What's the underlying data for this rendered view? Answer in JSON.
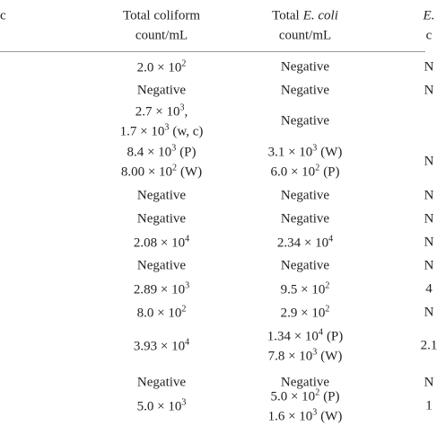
{
  "table": {
    "left_header": "c",
    "columns": [
      {
        "line1": "Total coliform",
        "line2": "count/mL"
      },
      {
        "line1": "Total",
        "line1_italic": "E. coli",
        "line2": "count/mL"
      },
      {
        "line1_italic": "E.",
        "line2": "c"
      }
    ],
    "rows": [
      [
        [
          {
            "mantissa": "2.0 × 10",
            "exponent": "2"
          }
        ],
        [
          {
            "text": "Negative"
          }
        ],
        [
          {
            "text": "N"
          }
        ]
      ],
      [
        [
          {
            "text": "Negative"
          }
        ],
        [
          {
            "text": "Negative"
          }
        ],
        [
          {
            "text": "N"
          }
        ]
      ],
      [
        [
          {
            "mantissa": "2.7 × 10",
            "exponent": "3",
            "note": ","
          },
          {
            "mantissa": "1.7 × 10",
            "exponent": "3",
            "note": "(w, c)"
          }
        ],
        [
          {
            "text": "Negative"
          }
        ],
        []
      ],
      [
        [
          {
            "mantissa": "8.4 × 10",
            "exponent": "3",
            "note": "(P)"
          },
          {
            "mantissa": "8.00 × 10",
            "exponent": "2",
            "note": "(W)"
          }
        ],
        [
          {
            "mantissa": "3.1 × 10",
            "exponent": "3",
            "note": "(W)"
          },
          {
            "mantissa": "6.0 × 10",
            "exponent": "2",
            "note": "(P)"
          }
        ],
        [
          {
            "text": "N"
          }
        ]
      ],
      [
        [
          {
            "text": "Negative"
          }
        ],
        [
          {
            "text": "Negative"
          }
        ],
        [
          {
            "text": "N"
          }
        ]
      ],
      [
        [
          {
            "text": "Negative"
          }
        ],
        [
          {
            "text": "Negative"
          }
        ],
        [
          {
            "text": "N"
          }
        ]
      ],
      [
        [
          {
            "mantissa": "2.08 × 10",
            "exponent": "4"
          }
        ],
        [
          {
            "mantissa": "2.34 × 10",
            "exponent": "4"
          }
        ],
        [
          {
            "text": "N"
          }
        ]
      ],
      [
        [
          {
            "text": "Negative"
          }
        ],
        [
          {
            "text": "Negative"
          }
        ],
        [
          {
            "text": "N"
          }
        ]
      ],
      [
        [
          {
            "mantissa": "2.89 × 10",
            "exponent": "3"
          }
        ],
        [
          {
            "mantissa": "9.5 × 10",
            "exponent": "2"
          }
        ],
        [
          {
            "text": "4"
          }
        ]
      ],
      [
        [
          {
            "mantissa": "8.0 × 10",
            "exponent": "2"
          }
        ],
        [
          {
            "mantissa": "2.9 × 10",
            "exponent": "2"
          }
        ],
        [
          {
            "text": "N"
          }
        ]
      ],
      [
        [
          {
            "mantissa": "3.93 × 10",
            "exponent": "4"
          }
        ],
        [
          {
            "mantissa": "1.34 × 10",
            "exponent": "4",
            "note": "(P)"
          },
          {
            "mantissa": "7.8 × 10",
            "exponent": "3",
            "note": "(W)"
          }
        ],
        [
          {
            "text": "2.1"
          }
        ]
      ],
      [
        [
          {
            "text": "Negative"
          }
        ],
        [
          {
            "text": "Negative"
          }
        ],
        [
          {
            "text": "N"
          }
        ]
      ],
      [
        [
          {
            "mantissa": "5.0 × 10",
            "exponent": "3"
          }
        ],
        [
          {
            "mantissa": "5.0 × 10",
            "exponent": "2",
            "note": "(P)"
          },
          {
            "mantissa": "1.6 × 10",
            "exponent": "3",
            "note": "(W)"
          }
        ],
        [
          {
            "text": "1"
          }
        ]
      ]
    ]
  }
}
